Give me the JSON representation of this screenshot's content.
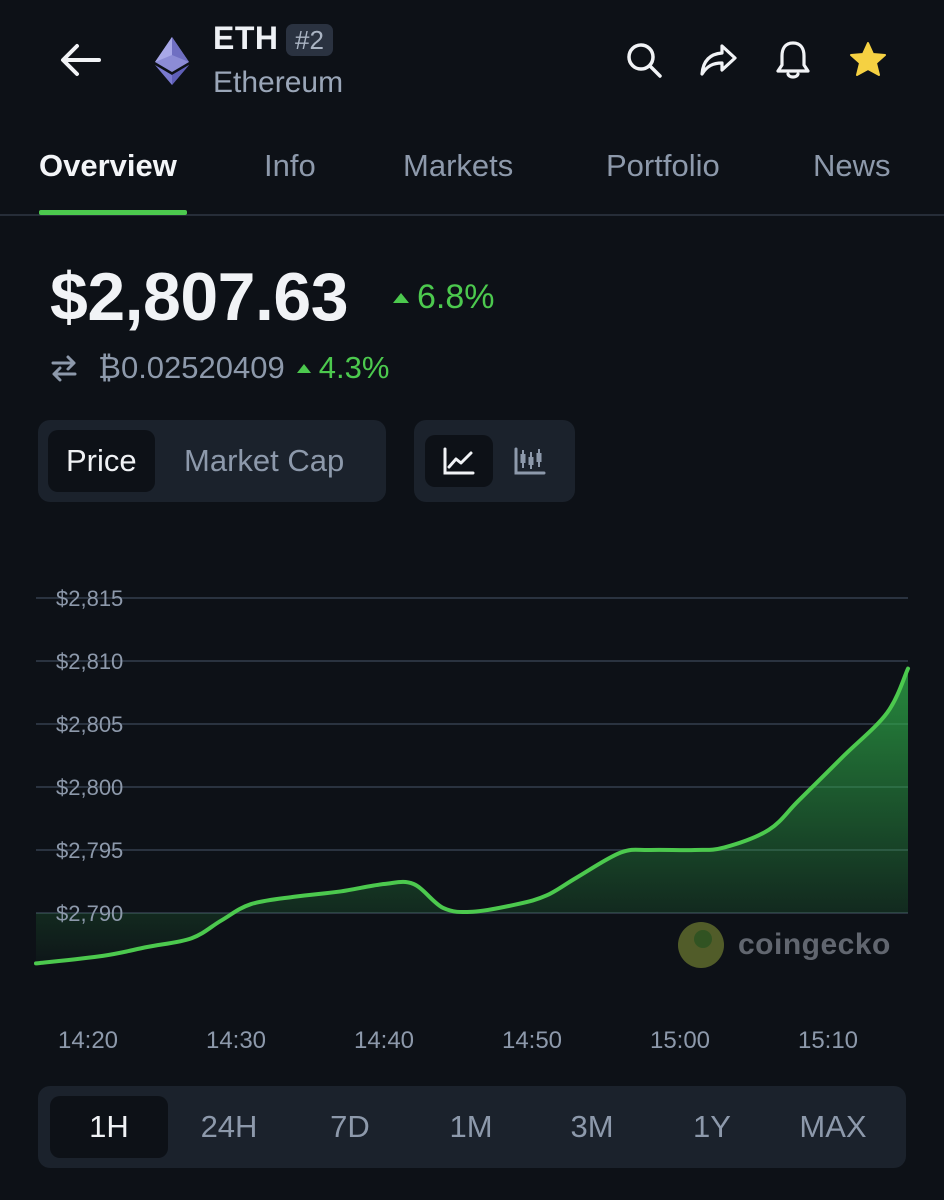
{
  "coin": {
    "symbol": "ETH",
    "rank": "#2",
    "name": "Ethereum"
  },
  "header_icons": [
    "back-arrow-icon",
    "search-icon",
    "share-icon",
    "bell-icon",
    "star-icon"
  ],
  "tabs": [
    {
      "label": "Overview",
      "active": true
    },
    {
      "label": "Info",
      "active": false
    },
    {
      "label": "Markets",
      "active": false
    },
    {
      "label": "Portfolio",
      "active": false
    },
    {
      "label": "News",
      "active": false
    }
  ],
  "price": {
    "usd": "$2,807.63",
    "usd_change": "6.8%",
    "btc": "₿0.02520409",
    "btc_change": "4.3%"
  },
  "toggles": {
    "metric": [
      {
        "label": "Price",
        "active": true
      },
      {
        "label": "Market Cap",
        "active": false
      }
    ],
    "chart_type": [
      {
        "icon": "line-chart-icon",
        "active": true
      },
      {
        "icon": "candlestick-chart-icon",
        "active": false
      }
    ]
  },
  "colors": {
    "accent": "#4cc94e",
    "background": "#0d1117",
    "star": "#f5d142"
  },
  "watermark": "coingecko",
  "range": [
    {
      "label": "1H",
      "active": true
    },
    {
      "label": "24H",
      "active": false
    },
    {
      "label": "7D",
      "active": false
    },
    {
      "label": "1M",
      "active": false
    },
    {
      "label": "3M",
      "active": false
    },
    {
      "label": "1Y",
      "active": false
    },
    {
      "label": "MAX",
      "active": false
    }
  ],
  "chart_data": {
    "type": "area",
    "title": "",
    "xlabel": "",
    "ylabel": "",
    "y_tick_labels": [
      "$2,815",
      "$2,810",
      "$2,805",
      "$2,800",
      "$2,795",
      "$2,790"
    ],
    "y_ticks": [
      2815,
      2810,
      2805,
      2800,
      2795,
      2790
    ],
    "x_tick_labels": [
      "14:20",
      "14:30",
      "14:40",
      "14:50",
      "15:00",
      "15:10"
    ],
    "ylim": [
      2785,
      2816
    ],
    "grid": true,
    "series": [
      {
        "x": [
          "14:18",
          "14:21",
          "14:24",
          "14:27",
          "14:29",
          "14:31",
          "14:34",
          "14:37",
          "14:40",
          "14:42",
          "14:44",
          "14:46",
          "14:49",
          "14:51",
          "14:53",
          "14:56",
          "14:58",
          "15:01",
          "15:03",
          "15:06",
          "15:08",
          "15:11",
          "15:14",
          "15:16"
        ],
        "values": [
          2786.0,
          2786.6,
          2787.3,
          2788.0,
          2789.4,
          2790.7,
          2791.3,
          2791.7,
          2792.3,
          2792.3,
          2790.4,
          2790.1,
          2790.7,
          2791.4,
          2792.8,
          2794.8,
          2795.0,
          2795.0,
          2795.2,
          2796.6,
          2798.9,
          2802.4,
          2805.9,
          2809.4
        ]
      }
    ]
  }
}
